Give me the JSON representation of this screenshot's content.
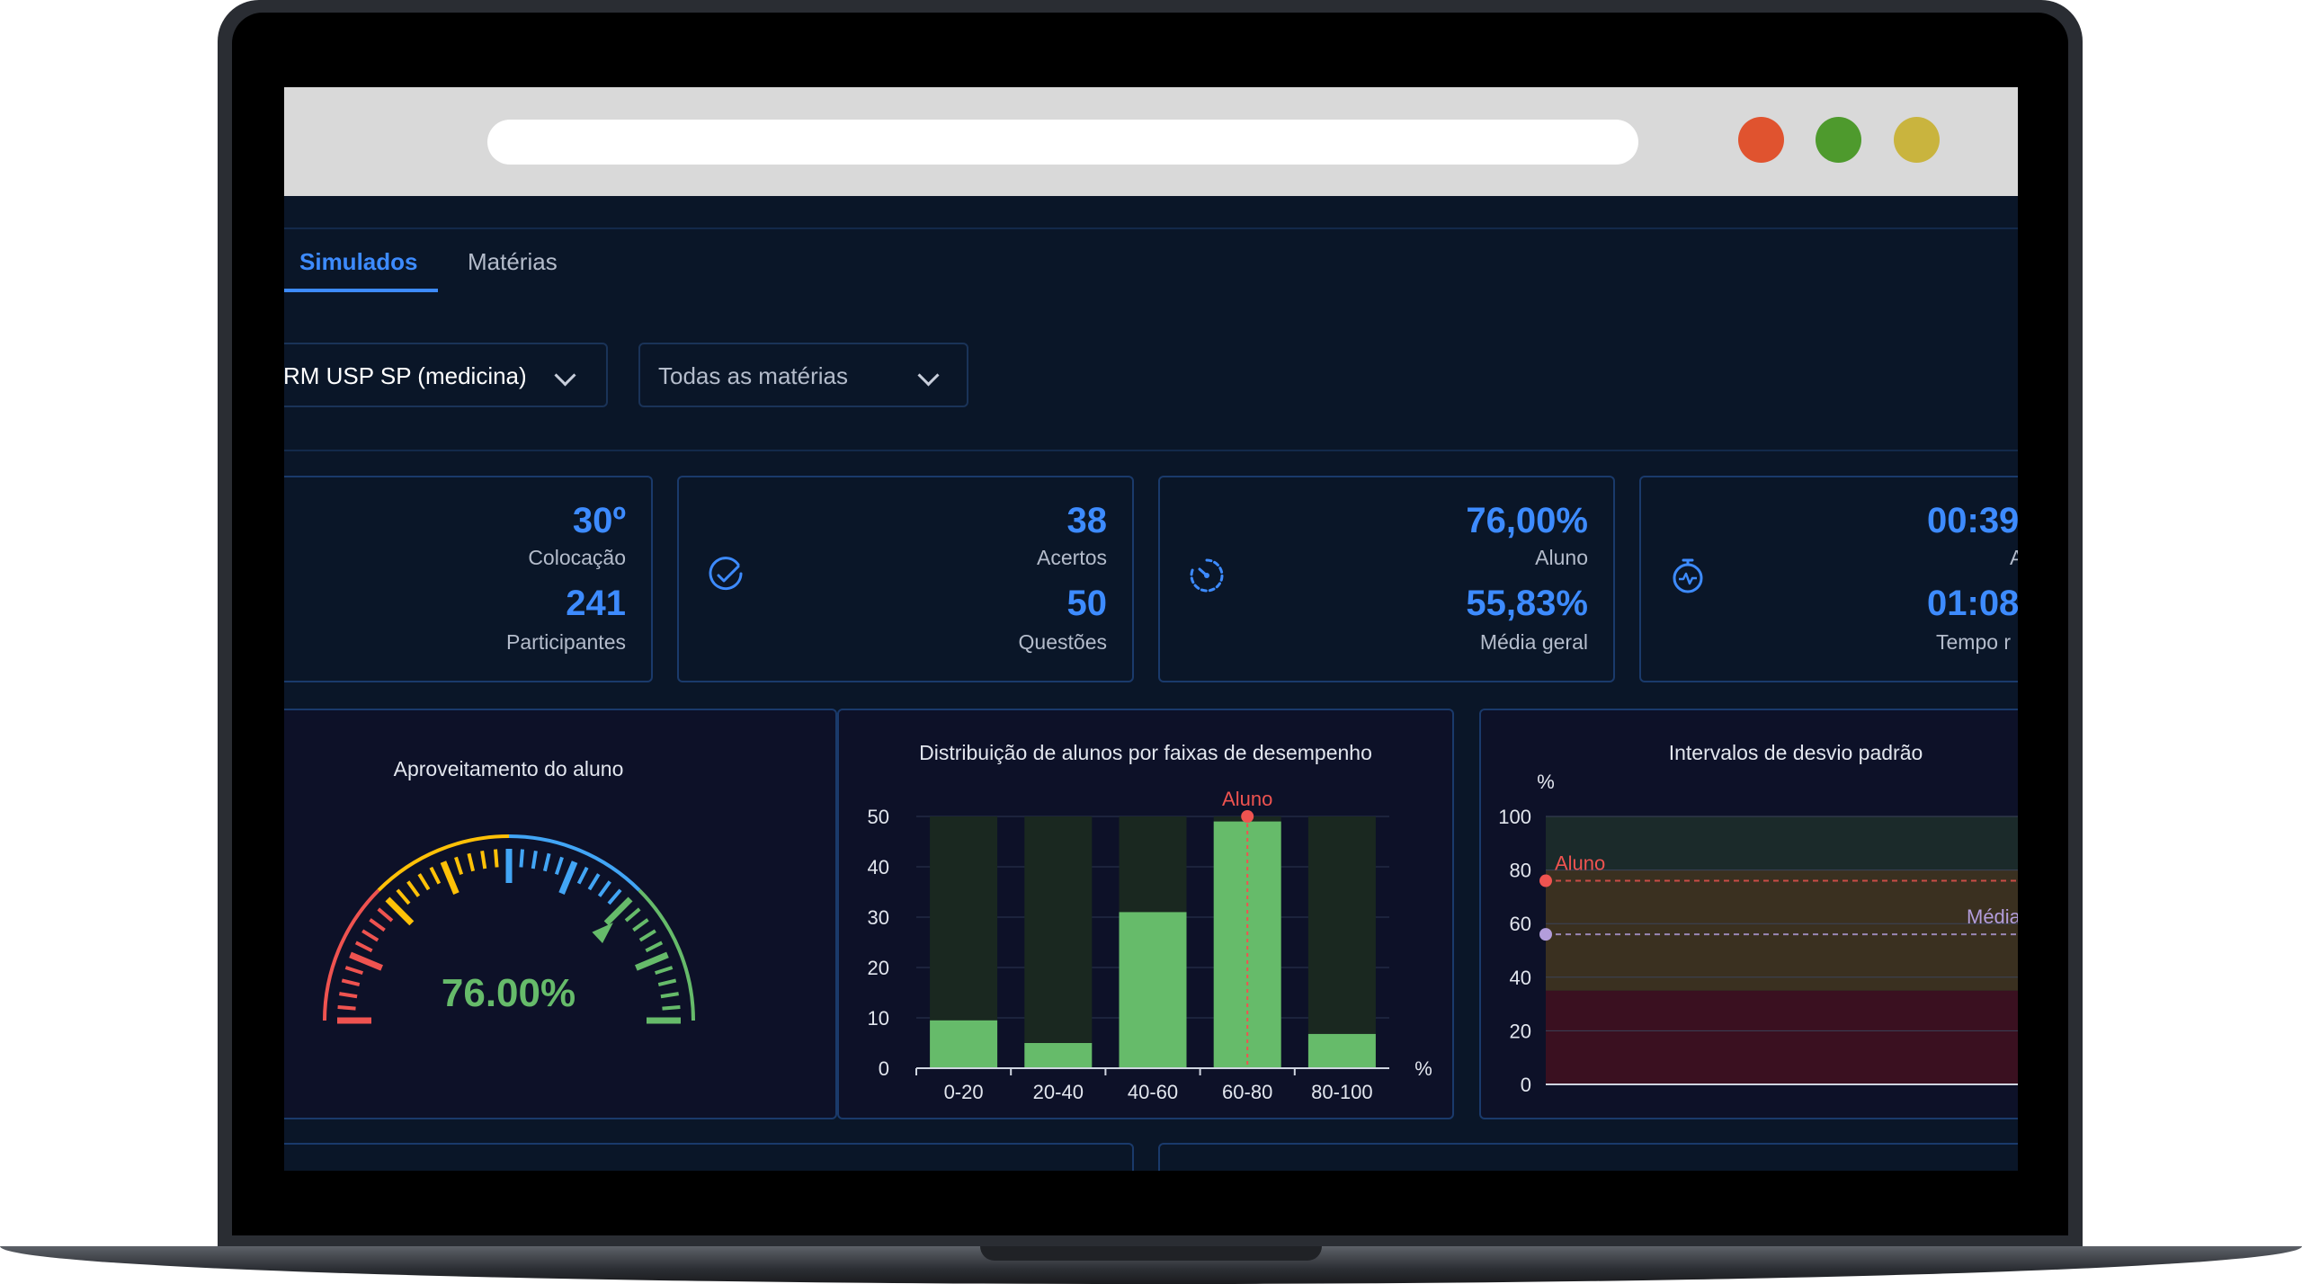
{
  "tabs": [
    {
      "label": "Simulados",
      "active": true
    },
    {
      "label": "Matérias",
      "active": false
    }
  ],
  "filters": {
    "exam": "RM USP SP (medicina)",
    "subject": "Todas as matérias"
  },
  "stats": {
    "ranking": {
      "position": "30º",
      "position_label": "Colocação",
      "participants": "241",
      "participants_label": "Participantes"
    },
    "answers": {
      "correct": "38",
      "correct_label": "Acertos",
      "questions": "50",
      "questions_label": "Questões",
      "icon": "check-circle-icon"
    },
    "performance": {
      "student": "76,00%",
      "student_label": "Aluno",
      "average": "55,83%",
      "average_label": "Média geral",
      "icon": "speedometer-icon"
    },
    "time": {
      "student": "00:39",
      "student_label": "A",
      "average": "01:08",
      "average_label": "Tempo r",
      "icon": "stopwatch-icon"
    }
  },
  "colors": {
    "accent": "#3d8bff",
    "green": "#66bb6a",
    "red": "#ef5350",
    "purple": "#b39ddb"
  },
  "chart_data": [
    {
      "type": "gauge",
      "title": "Aproveitamento do aluno",
      "value": 76.0,
      "value_label": "76.00%",
      "range": [
        0,
        100
      ]
    },
    {
      "type": "bar",
      "title": "Distribuição de alunos por faixas de desempenho",
      "categories": [
        "0-20",
        "20-40",
        "40-60",
        "60-80",
        "80-100"
      ],
      "values": [
        9.5,
        5,
        31,
        49,
        6.8
      ],
      "ylim": [
        0,
        50
      ],
      "yticks": [
        0,
        10,
        20,
        30,
        40,
        50
      ],
      "xunit": "%",
      "annotation": {
        "label": "Aluno",
        "category": "60-80"
      }
    },
    {
      "type": "line",
      "title": "Intervalos de desvio padrão",
      "ylabel": "%",
      "ylim": [
        0,
        100
      ],
      "yticks": [
        0,
        20,
        40,
        60,
        80,
        100
      ],
      "bands": [
        {
          "from": 0,
          "to": 35,
          "color": "#3a1020"
        },
        {
          "from": 35,
          "to": 80,
          "color": "#3a3020"
        },
        {
          "from": 80,
          "to": 100,
          "color": "#1b2a2a"
        }
      ],
      "series": [
        {
          "name": "Aluno",
          "value": 76,
          "color": "#ef5350"
        },
        {
          "name": "Média",
          "value": 56,
          "color": "#b39ddb"
        }
      ]
    }
  ]
}
